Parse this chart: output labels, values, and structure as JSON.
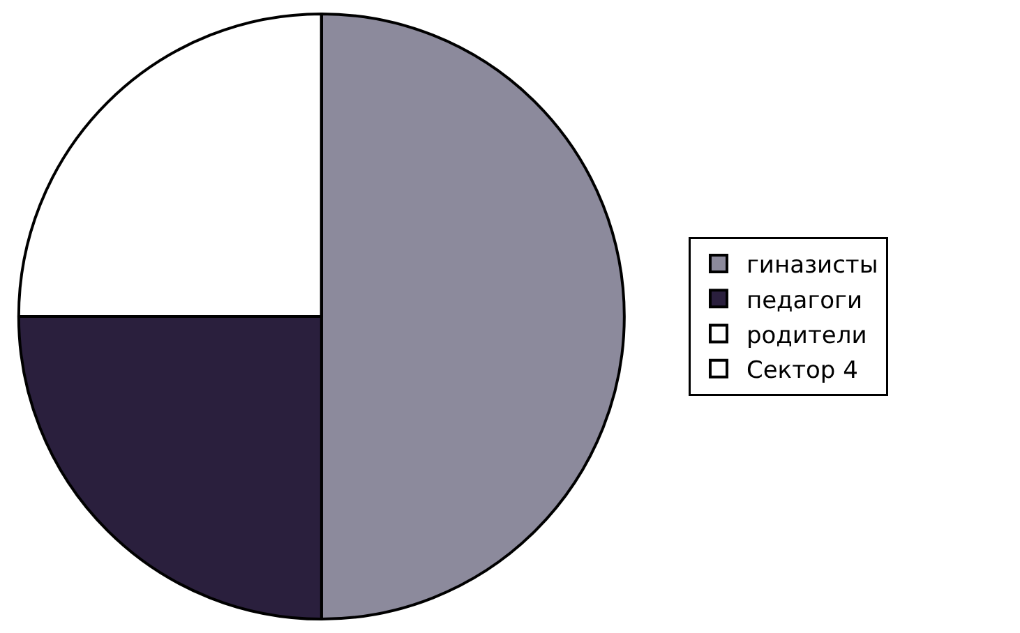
{
  "chart_data": {
    "type": "pie",
    "categories": [
      "гиназисты",
      "педагоги",
      "родители",
      "Сектор 4"
    ],
    "values": [
      50,
      25,
      25,
      0
    ],
    "colors": [
      "#8c8a9c",
      "#2a1f3d",
      "#ffffff",
      "#ffffff"
    ],
    "legend": "right"
  }
}
